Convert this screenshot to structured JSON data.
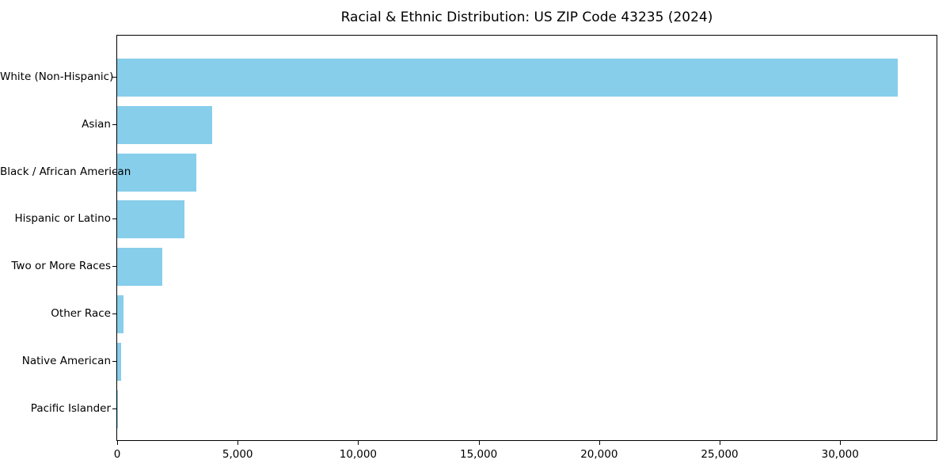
{
  "figure": {
    "background_color": "#FFFFFF",
    "axis_color": "#000000"
  },
  "chart_data": {
    "type": "bar",
    "orientation": "horizontal",
    "title": "Racial & Ethnic Distribution: US ZIP Code 43235 (2024)",
    "xlabel": "",
    "ylabel": "",
    "categories": [
      "White (Non-Hispanic)",
      "Asian",
      "Black / African American",
      "Hispanic or Latino",
      "Two or More Races",
      "Other Race",
      "Native American",
      "Pacific Islander"
    ],
    "values": [
      32400,
      3950,
      3300,
      2780,
      1860,
      270,
      160,
      15
    ],
    "xlim": [
      0,
      34000
    ],
    "xticks": [
      0,
      5000,
      10000,
      15000,
      20000,
      25000,
      30000
    ],
    "xtick_labels": [
      "0",
      "5,000",
      "10,000",
      "15,000",
      "20,000",
      "25,000",
      "30,000"
    ],
    "bar_color": "#87CEEB",
    "grid": false,
    "legend": null
  }
}
